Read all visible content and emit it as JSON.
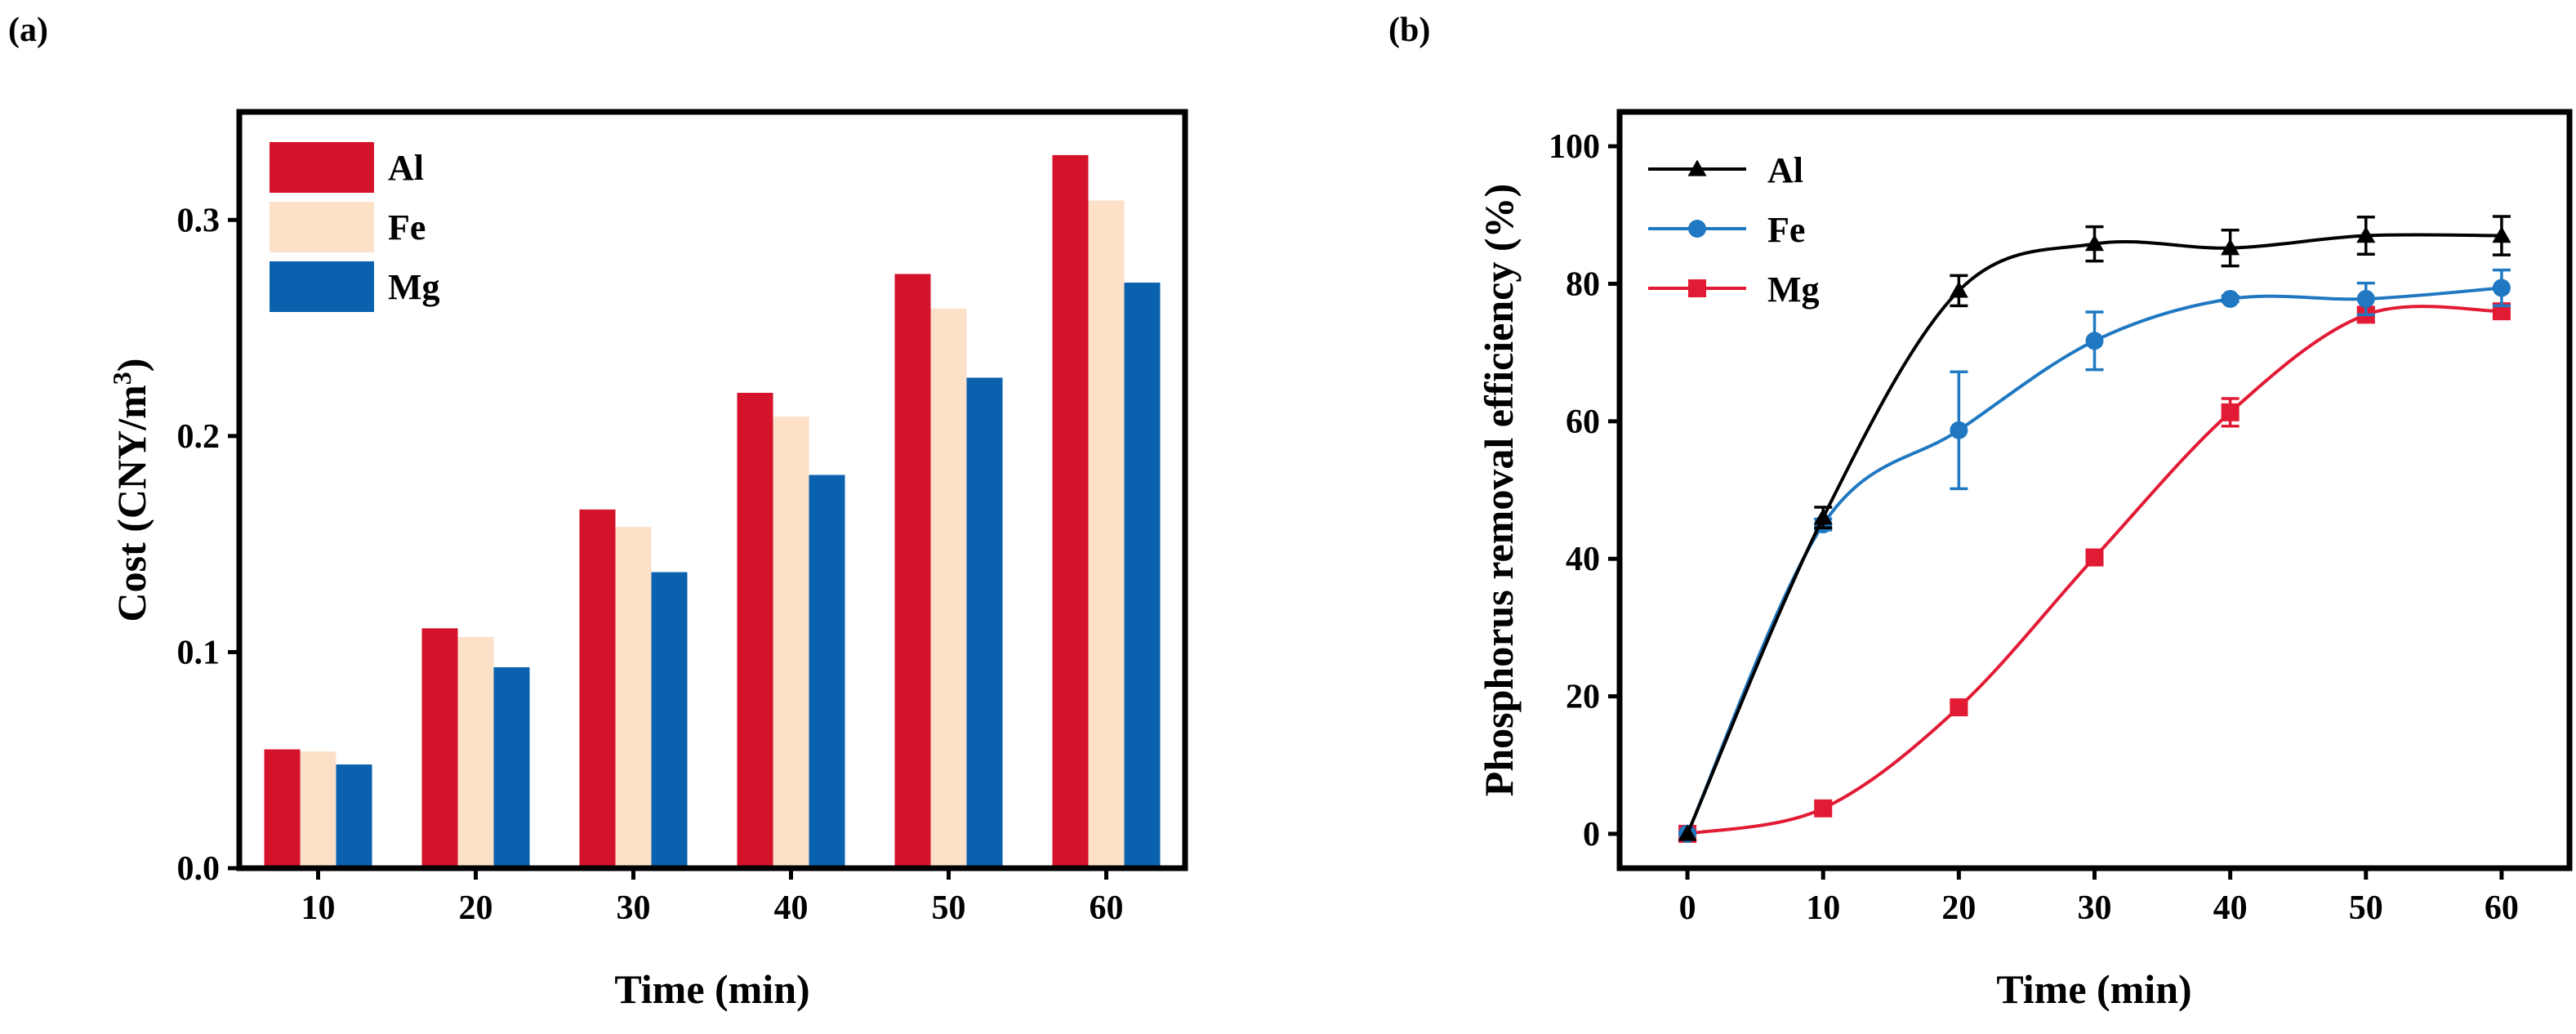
{
  "chart_data": [
    {
      "panel_label": "(a)",
      "type": "bar",
      "categories": [
        "10",
        "20",
        "30",
        "40",
        "50",
        "60"
      ],
      "series": [
        {
          "name": "Al",
          "color": "#d4122a",
          "values": [
            0.055,
            0.111,
            0.166,
            0.22,
            0.275,
            0.33
          ]
        },
        {
          "name": "Fe",
          "color": "#fde0c8",
          "values": [
            0.054,
            0.107,
            0.158,
            0.209,
            0.259,
            0.309
          ]
        },
        {
          "name": "Mg",
          "color": "#0a62ae",
          "values": [
            0.048,
            0.093,
            0.137,
            0.182,
            0.227,
            0.271
          ]
        }
      ],
      "xlabel": "Time (min)",
      "ylabel": "Cost (CNY/m",
      "ylabel_sup": "3",
      "ylabel_end": ")",
      "ylim": [
        0,
        0.35
      ],
      "yticks": [
        "0.0",
        "0.1",
        "0.2",
        "0.3"
      ],
      "legend": "top-left"
    },
    {
      "panel_label": "(b)",
      "type": "line",
      "x": [
        0,
        10,
        20,
        30,
        40,
        50,
        60
      ],
      "series": [
        {
          "name": "Al",
          "marker": "triangle",
          "color": "#000000",
          "values": [
            0,
            46,
            79,
            85.8,
            85.2,
            87,
            87
          ],
          "errors": [
            0,
            1.5,
            2.2,
            2.5,
            2.6,
            2.7,
            2.8
          ]
        },
        {
          "name": "Fe",
          "marker": "circle",
          "color": "#1f78c1",
          "values": [
            0,
            45,
            58.7,
            71.7,
            77.8,
            77.8,
            79.4
          ],
          "errors": [
            0,
            0.8,
            8.5,
            4.2,
            0.4,
            2.3,
            2.6
          ]
        },
        {
          "name": "Mg",
          "marker": "square",
          "color": "#e21b35",
          "values": [
            0,
            3.7,
            18.4,
            40.2,
            61.3,
            75.5,
            76
          ],
          "errors": [
            0,
            0.5,
            0.6,
            0.8,
            2,
            1,
            1
          ]
        }
      ],
      "xlabel": "Time (min)",
      "ylabel": "Phosphorus removal efficiency (%)",
      "xlim": [
        -5,
        65
      ],
      "ylim": [
        -5,
        105
      ],
      "xticks": [
        "0",
        "10",
        "20",
        "30",
        "40",
        "50",
        "60"
      ],
      "yticks": [
        "0",
        "20",
        "40",
        "60",
        "80",
        "100"
      ],
      "legend": "top-left"
    }
  ]
}
